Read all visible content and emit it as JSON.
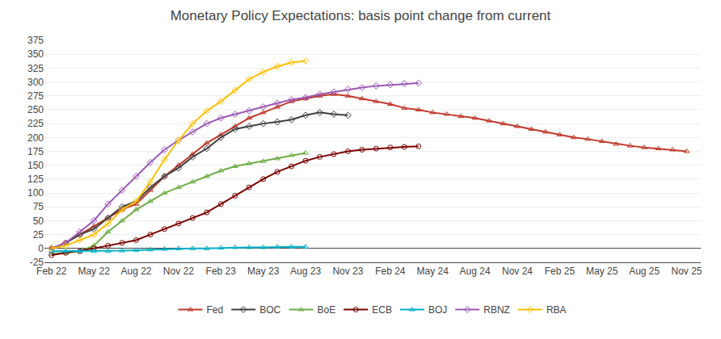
{
  "chart_data": {
    "type": "line",
    "title": "Monetary Policy Expectations: basis point change from current",
    "xlim": [
      -0.5,
      46
    ],
    "xticks": [
      {
        "value": 0,
        "label": "Feb 22"
      },
      {
        "value": 3,
        "label": "May 22"
      },
      {
        "value": 6,
        "label": "Aug 22"
      },
      {
        "value": 9,
        "label": "Nov 22"
      },
      {
        "value": 12,
        "label": "Feb 23"
      },
      {
        "value": 15,
        "label": "May 23"
      },
      {
        "value": 18,
        "label": "Aug 23"
      },
      {
        "value": 21,
        "label": "Nov 23"
      },
      {
        "value": 24,
        "label": "Feb 24"
      },
      {
        "value": 27,
        "label": "May 24"
      },
      {
        "value": 30,
        "label": "Aug 24"
      },
      {
        "value": 33,
        "label": "Nov 24"
      },
      {
        "value": 36,
        "label": "Feb 25"
      },
      {
        "value": 39,
        "label": "May 25"
      },
      {
        "value": 42,
        "label": "Aug 25"
      },
      {
        "value": 45,
        "label": "Nov 25"
      }
    ],
    "ylim": [
      -25,
      375
    ],
    "yticks": [
      -25,
      0,
      25,
      50,
      75,
      100,
      125,
      150,
      175,
      200,
      225,
      250,
      275,
      300,
      325,
      350,
      375
    ],
    "grid": "y",
    "legend": "bottom",
    "series": [
      {
        "name": "Fed",
        "color": "#c0392b",
        "marker": "triangle-up",
        "x": [
          0,
          1,
          2,
          3,
          4,
          5,
          6,
          7,
          8,
          9,
          10,
          11,
          12,
          13,
          14,
          15,
          16,
          17,
          18,
          19,
          20,
          21,
          22,
          23,
          24,
          25,
          26,
          27,
          28,
          29,
          30,
          31,
          32,
          33,
          34,
          35,
          36,
          37,
          38,
          39,
          40,
          41,
          42,
          43,
          44,
          45
        ],
        "values": [
          0,
          10,
          25,
          40,
          55,
          70,
          80,
          105,
          130,
          150,
          170,
          190,
          205,
          220,
          235,
          245,
          255,
          265,
          270,
          275,
          278,
          275,
          270,
          265,
          260,
          253,
          250,
          245,
          242,
          238,
          235,
          230,
          225,
          220,
          215,
          210,
          205,
          200,
          197,
          193,
          188,
          185,
          182,
          180,
          178,
          175
        ]
      },
      {
        "name": "BOC",
        "color": "#404040",
        "marker": "diamond",
        "x": [
          0,
          1,
          2,
          3,
          4,
          5,
          6,
          7,
          8,
          9,
          10,
          11,
          12,
          13,
          14,
          15,
          16,
          17,
          18,
          19,
          20,
          21
        ],
        "values": [
          0,
          10,
          25,
          35,
          55,
          75,
          85,
          110,
          130,
          145,
          165,
          180,
          200,
          215,
          220,
          225,
          228,
          232,
          240,
          245,
          242,
          240
        ]
      },
      {
        "name": "BoE",
        "color": "#70ad47",
        "marker": "triangle-up",
        "x": [
          0,
          1,
          2,
          3,
          4,
          5,
          6,
          7,
          8,
          9,
          10,
          11,
          12,
          13,
          14,
          15,
          16,
          17,
          18
        ],
        "values": [
          -10,
          -8,
          -5,
          5,
          30,
          50,
          70,
          85,
          100,
          110,
          120,
          130,
          140,
          148,
          153,
          157,
          162,
          168,
          172
        ]
      },
      {
        "name": "ECB",
        "color": "#7b0000",
        "marker": "circle",
        "x": [
          0,
          1,
          2,
          3,
          4,
          5,
          6,
          7,
          8,
          9,
          10,
          11,
          12,
          13,
          14,
          15,
          16,
          17,
          18,
          19,
          20,
          21,
          22,
          23,
          24,
          25,
          26
        ],
        "values": [
          -12,
          -8,
          -5,
          0,
          5,
          10,
          15,
          25,
          35,
          45,
          55,
          65,
          80,
          95,
          110,
          125,
          138,
          148,
          158,
          165,
          170,
          175,
          178,
          180,
          182,
          183,
          184
        ]
      },
      {
        "name": "BOJ",
        "color": "#00b0c8",
        "marker": "triangle-up",
        "x": [
          0,
          1,
          2,
          3,
          4,
          5,
          6,
          7,
          8,
          9,
          10,
          11,
          12,
          13,
          14,
          15,
          16,
          17,
          18
        ],
        "values": [
          -5,
          -5,
          -5,
          -5,
          -5,
          -4,
          -3,
          -2,
          -1,
          0,
          0,
          0,
          1,
          2,
          2,
          2,
          3,
          3,
          3
        ]
      },
      {
        "name": "RBNZ",
        "color": "#9b59b6",
        "marker": "diamond",
        "x": [
          0,
          1,
          2,
          3,
          4,
          5,
          6,
          7,
          8,
          9,
          10,
          11,
          12,
          13,
          14,
          15,
          16,
          17,
          18,
          19,
          20,
          21,
          22,
          23,
          24,
          25,
          26
        ],
        "values": [
          0,
          10,
          30,
          50,
          80,
          105,
          130,
          155,
          178,
          195,
          210,
          225,
          235,
          242,
          248,
          255,
          262,
          268,
          272,
          278,
          282,
          287,
          290,
          293,
          295,
          297,
          298
        ]
      },
      {
        "name": "RBA",
        "color": "#ffc000",
        "marker": "diamond",
        "x": [
          0,
          1,
          2,
          3,
          4,
          5,
          6,
          7,
          8,
          9,
          10,
          11,
          12,
          13,
          14,
          15,
          16,
          17,
          18
        ],
        "values": [
          0,
          5,
          15,
          25,
          45,
          70,
          85,
          120,
          160,
          195,
          225,
          248,
          265,
          285,
          305,
          318,
          328,
          335,
          338
        ]
      }
    ]
  }
}
